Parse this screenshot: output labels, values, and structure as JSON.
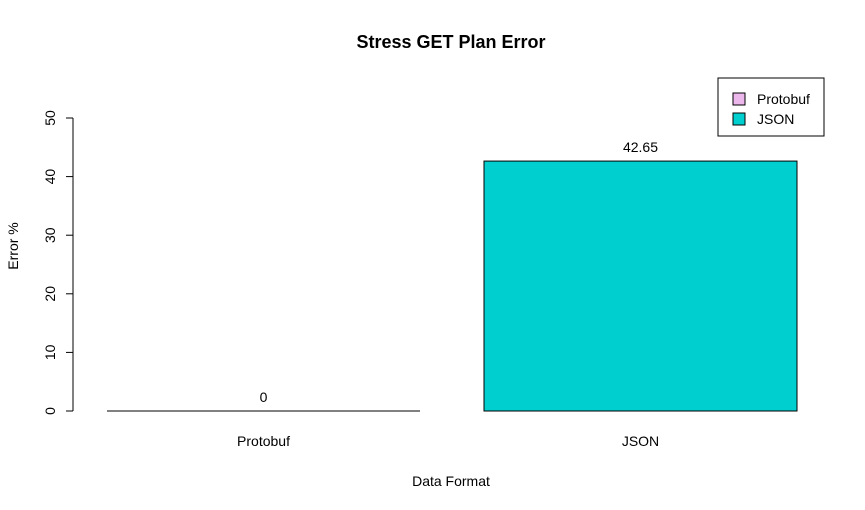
{
  "chart_data": {
    "type": "bar",
    "title": "Stress GET Plan Error",
    "xlabel": "Data Format",
    "ylabel": "Error %",
    "categories": [
      "Protobuf",
      "JSON"
    ],
    "values": [
      0,
      42.65
    ],
    "value_labels": [
      "0",
      "42.65"
    ],
    "colors": [
      "#ecb8ec",
      "#00cfcf"
    ],
    "ylim": [
      0,
      50
    ],
    "yticks": [
      0,
      10,
      20,
      30,
      40,
      50
    ],
    "ytick_labels": [
      "0",
      "10",
      "20",
      "30",
      "40",
      "50"
    ],
    "grid": false,
    "legend": {
      "position": "top-right",
      "entries": [
        {
          "label": "Protobuf",
          "color": "#ecb8ec"
        },
        {
          "label": "JSON",
          "color": "#00cfcf"
        }
      ]
    }
  }
}
